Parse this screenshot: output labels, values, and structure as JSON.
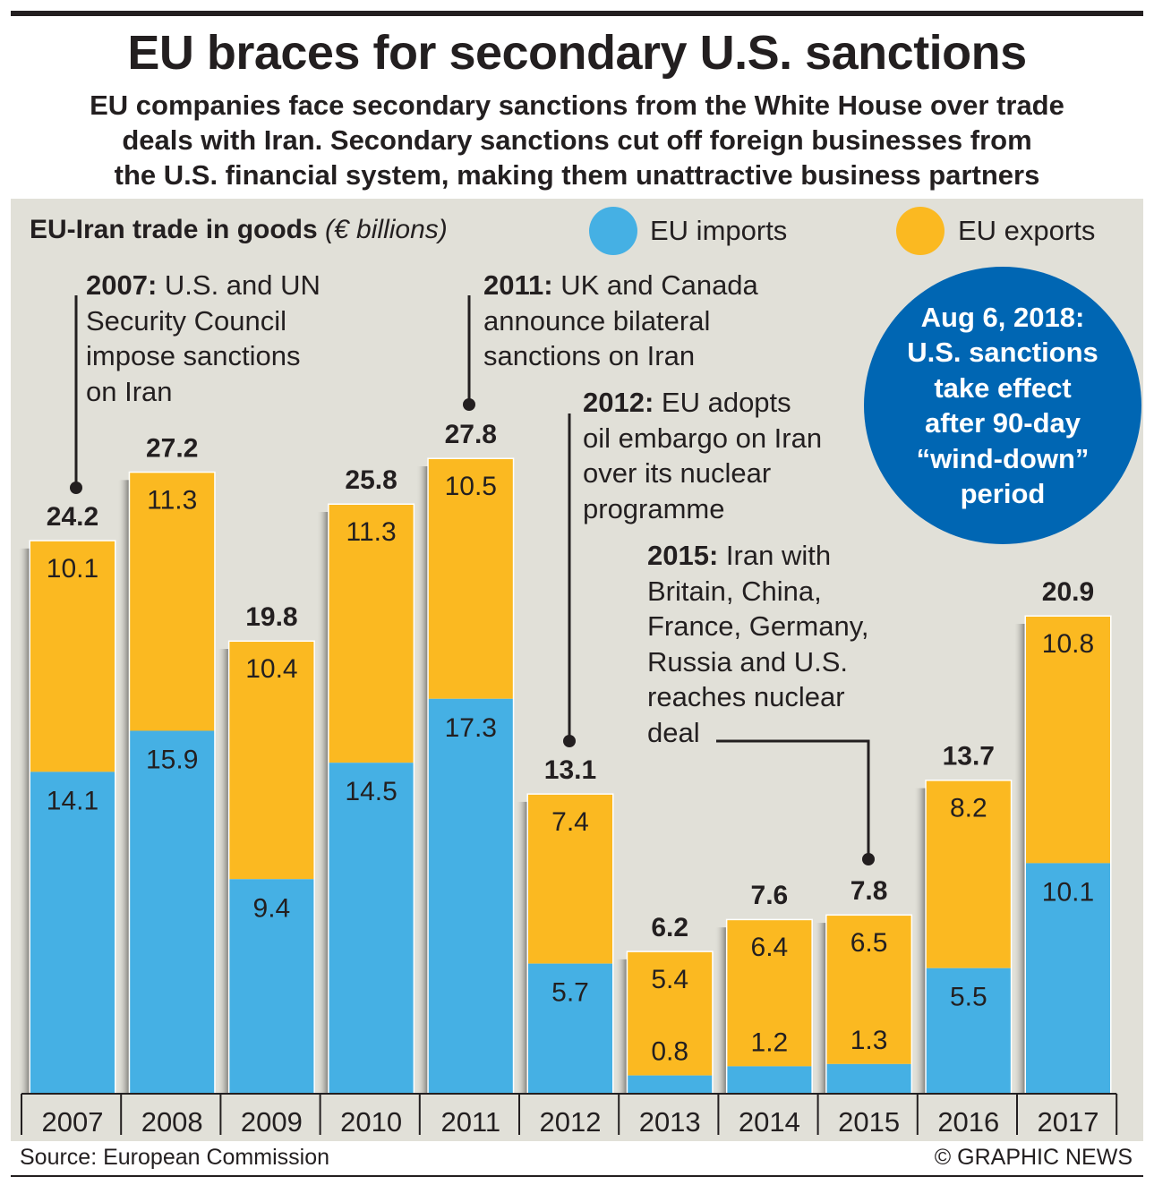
{
  "header": {
    "title": "EU braces for secondary U.S. sanctions",
    "subtitle_lines": [
      "EU companies face secondary sanctions from the White House over trade",
      "deals with Iran. Secondary sanctions cut off foreign businesses from",
      "the U.S. financial system, making them unattractive business partners"
    ]
  },
  "legend": {
    "title": "EU-Iran trade in goods",
    "unit": "(€ billions)",
    "imports_label": "EU imports",
    "exports_label": "EU exports"
  },
  "colors": {
    "imports": "#45b0e4",
    "exports": "#fbb921",
    "panel": "#e1e0d8",
    "callout": "#0066b3"
  },
  "annotations": [
    {
      "bold": "2007:",
      "lines": [
        " U.S. and UN",
        "Security Council",
        "impose sanctions",
        "on Iran"
      ]
    },
    {
      "bold": "2011:",
      "lines": [
        " UK and Canada",
        "announce bilateral",
        "sanctions on Iran"
      ]
    },
    {
      "bold": "2012:",
      "lines": [
        " EU adopts",
        "oil embargo on Iran",
        "over its nuclear",
        "programme"
      ]
    },
    {
      "bold": "2015:",
      "lines": [
        " Iran with",
        "Britain, China,",
        "France, Germany,",
        "Russia and U.S.",
        "reaches nuclear",
        "deal"
      ]
    }
  ],
  "callout": {
    "lines": [
      "Aug 6, 2018:",
      "U.S. sanctions",
      "take effect",
      "after 90-day",
      "“wind-down”",
      "period"
    ]
  },
  "chart_data": {
    "type": "bar",
    "stacked": true,
    "title": "EU-Iran trade in goods (€ billions)",
    "categories": [
      "2007",
      "2008",
      "2009",
      "2010",
      "2011",
      "2012",
      "2013",
      "2014",
      "2015",
      "2016",
      "2017"
    ],
    "series": [
      {
        "name": "EU imports",
        "values": [
          14.1,
          15.9,
          9.4,
          14.5,
          17.3,
          5.7,
          0.8,
          1.2,
          1.3,
          5.5,
          10.1
        ]
      },
      {
        "name": "EU exports",
        "values": [
          10.1,
          11.3,
          10.4,
          11.3,
          10.5,
          7.4,
          5.4,
          6.4,
          6.5,
          8.2,
          10.8
        ]
      }
    ],
    "totals": [
      "24.2",
      "27.2",
      "19.8",
      "25.8",
      "27.8",
      "13.1",
      "6.2",
      "7.6",
      "7.8",
      "13.7",
      "20.9"
    ],
    "imports_labels": [
      "14.1",
      "15.9",
      "9.4",
      "14.5",
      "17.3",
      "5.7",
      "0.8",
      "1.2",
      "1.3",
      "5.5",
      "10.1"
    ],
    "exports_labels": [
      "10.1",
      "11.3",
      "10.4",
      "11.3",
      "10.5",
      "7.4",
      "5.4",
      "6.4",
      "6.5",
      "8.2",
      "10.8"
    ],
    "ylim": [
      0,
      30
    ],
    "grid": false,
    "legend_position": "top"
  },
  "footer": {
    "source": "Source: European Commission",
    "credit": "© GRAPHIC NEWS"
  }
}
